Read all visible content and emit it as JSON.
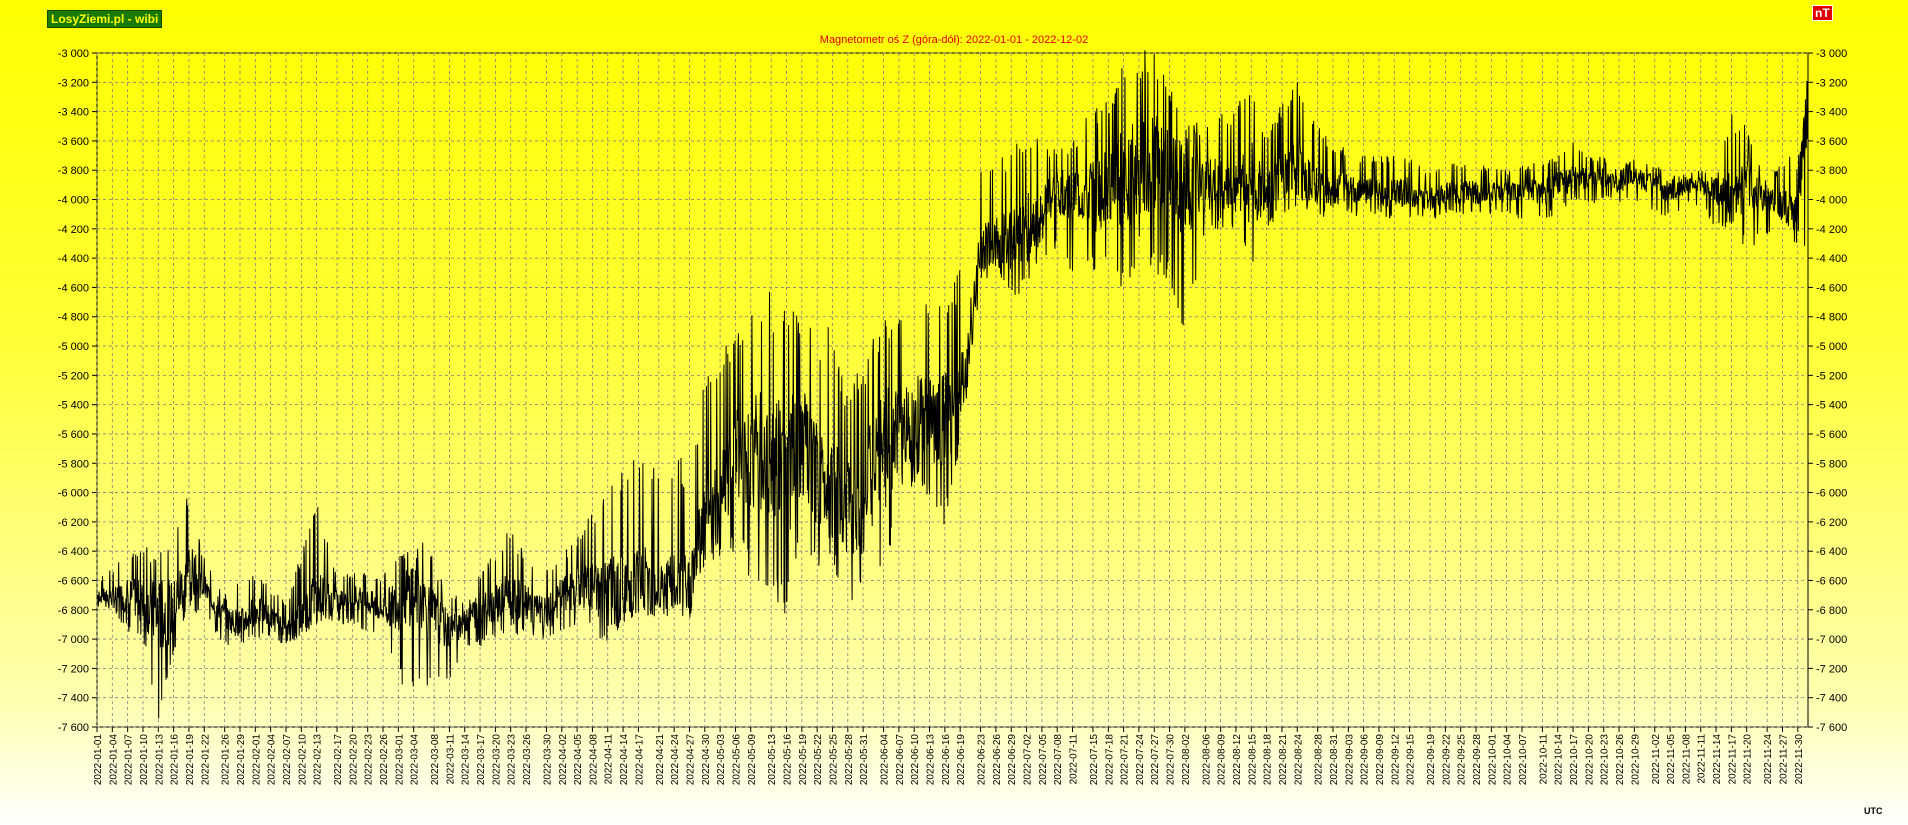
{
  "header": {
    "brand": "LosyZiemi.pl - wibi",
    "unit_badge": "nT",
    "timezone": "UTC"
  },
  "chart_data": {
    "type": "line",
    "title": "Magnetometr oś Z (góra-dół): 2022-01-01 - 2022-12-02",
    "xlabel": "",
    "ylabel": "nT",
    "ylim": [
      -7600,
      -3000
    ],
    "y_ticks": [
      -3000,
      -3200,
      -3400,
      -3600,
      -3800,
      -4000,
      -4200,
      -4400,
      -4600,
      -4800,
      -5000,
      -5200,
      -5400,
      -5600,
      -5800,
      -6000,
      -6200,
      -6400,
      -6600,
      -6800,
      -7000,
      -7200,
      -7400,
      -7600
    ],
    "y_tick_labels": [
      "-3 000",
      "-3 200",
      "-3 400",
      "-3 600",
      "-3 800",
      "-4 000",
      "-4 200",
      "-4 400",
      "-4 600",
      "-4 800",
      "-5 000",
      "-5 200",
      "-5 400",
      "-5 600",
      "-5 800",
      "-6 000",
      "-6 200",
      "-6 400",
      "-6 600",
      "-6 800",
      "-7 000",
      "-7 200",
      "-7 400",
      "-7 600"
    ],
    "x_range": [
      "2022-01-01",
      "2022-12-02"
    ],
    "x_tick_labels": [
      "2022-01-01",
      "2022-01-04",
      "2022-01-07",
      "2022-01-10",
      "2022-01-13",
      "2022-01-16",
      "2022-01-19",
      "2022-01-22",
      "2022-01-26",
      "2022-01-29",
      "2022-02-01",
      "2022-02-04",
      "2022-02-07",
      "2022-02-10",
      "2022-02-13",
      "2022-02-17",
      "2022-02-20",
      "2022-02-23",
      "2022-02-26",
      "2022-03-01",
      "2022-03-04",
      "2022-03-08",
      "2022-03-11",
      "2022-03-14",
      "2022-03-17",
      "2022-03-20",
      "2022-03-23",
      "2022-03-26",
      "2022-03-30",
      "2022-04-02",
      "2022-04-05",
      "2022-04-08",
      "2022-04-11",
      "2022-04-14",
      "2022-04-17",
      "2022-04-21",
      "2022-04-24",
      "2022-04-27",
      "2022-04-30",
      "2022-05-03",
      "2022-05-06",
      "2022-05-09",
      "2022-05-13",
      "2022-05-16",
      "2022-05-19",
      "2022-05-22",
      "2022-05-25",
      "2022-05-28",
      "2022-05-31",
      "2022-06-04",
      "2022-06-07",
      "2022-06-10",
      "2022-06-13",
      "2022-06-16",
      "2022-06-19",
      "2022-06-23",
      "2022-06-26",
      "2022-06-29",
      "2022-07-02",
      "2022-07-05",
      "2022-07-08",
      "2022-07-11",
      "2022-07-15",
      "2022-07-18",
      "2022-07-21",
      "2022-07-24",
      "2022-07-27",
      "2022-07-30",
      "2022-08-02",
      "2022-08-06",
      "2022-08-09",
      "2022-08-12",
      "2022-08-15",
      "2022-08-18",
      "2022-08-21",
      "2022-08-24",
      "2022-08-28",
      "2022-08-31",
      "2022-09-03",
      "2022-09-06",
      "2022-09-09",
      "2022-09-12",
      "2022-09-15",
      "2022-09-19",
      "2022-09-22",
      "2022-09-25",
      "2022-09-28",
      "2022-10-01",
      "2022-10-04",
      "2022-10-07",
      "2022-10-11",
      "2022-10-14",
      "2022-10-17",
      "2022-10-20",
      "2022-10-23",
      "2022-10-26",
      "2022-10-29",
      "2022-11-02",
      "2022-11-05",
      "2022-11-08",
      "2022-11-11",
      "2022-11-14",
      "2022-11-17",
      "2022-11-20",
      "2022-11-24",
      "2022-11-27",
      "2022-11-30"
    ],
    "series": [
      {
        "color": "#000000",
        "x": [
          "2022-01-01",
          "2022-01-04",
          "2022-01-07",
          "2022-01-10",
          "2022-01-13",
          "2022-01-16",
          "2022-01-19",
          "2022-01-22",
          "2022-01-26",
          "2022-01-29",
          "2022-02-01",
          "2022-02-04",
          "2022-02-07",
          "2022-02-10",
          "2022-02-13",
          "2022-02-17",
          "2022-02-20",
          "2022-02-23",
          "2022-02-26",
          "2022-03-01",
          "2022-03-04",
          "2022-03-08",
          "2022-03-11",
          "2022-03-14",
          "2022-03-17",
          "2022-03-20",
          "2022-03-23",
          "2022-03-26",
          "2022-03-30",
          "2022-04-02",
          "2022-04-05",
          "2022-04-08",
          "2022-04-11",
          "2022-04-14",
          "2022-04-17",
          "2022-04-21",
          "2022-04-24",
          "2022-04-27",
          "2022-04-30",
          "2022-05-03",
          "2022-05-06",
          "2022-05-09",
          "2022-05-13",
          "2022-05-16",
          "2022-05-19",
          "2022-05-22",
          "2022-05-25",
          "2022-05-28",
          "2022-05-31",
          "2022-06-04",
          "2022-06-07",
          "2022-06-10",
          "2022-06-13",
          "2022-06-16",
          "2022-06-19",
          "2022-06-23",
          "2022-06-26",
          "2022-06-29",
          "2022-07-02",
          "2022-07-05",
          "2022-07-08",
          "2022-07-11",
          "2022-07-15",
          "2022-07-18",
          "2022-07-21",
          "2022-07-24",
          "2022-07-27",
          "2022-07-30",
          "2022-08-02",
          "2022-08-06",
          "2022-08-09",
          "2022-08-12",
          "2022-08-15",
          "2022-08-18",
          "2022-08-21",
          "2022-08-24",
          "2022-08-28",
          "2022-08-31",
          "2022-09-03",
          "2022-09-06",
          "2022-09-09",
          "2022-09-12",
          "2022-09-15",
          "2022-09-19",
          "2022-09-22",
          "2022-09-25",
          "2022-09-28",
          "2022-10-01",
          "2022-10-04",
          "2022-10-07",
          "2022-10-11",
          "2022-10-14",
          "2022-10-17",
          "2022-10-20",
          "2022-10-23",
          "2022-10-26",
          "2022-10-29",
          "2022-11-02",
          "2022-11-05",
          "2022-11-08",
          "2022-11-11",
          "2022-11-14",
          "2022-11-17",
          "2022-11-20",
          "2022-11-24",
          "2022-11-27",
          "2022-11-30",
          "2022-12-02"
        ],
        "mean": [
          -6700,
          -6720,
          -6700,
          -6750,
          -6850,
          -6800,
          -6500,
          -6650,
          -6850,
          -6900,
          -6800,
          -6850,
          -6950,
          -6850,
          -6700,
          -6750,
          -6700,
          -6750,
          -6800,
          -6750,
          -6650,
          -6850,
          -6950,
          -6850,
          -6800,
          -6750,
          -6700,
          -6750,
          -6850,
          -6700,
          -6650,
          -6650,
          -6700,
          -6650,
          -6600,
          -6650,
          -6650,
          -6650,
          -6150,
          -5950,
          -5750,
          -5700,
          -5800,
          -5850,
          -5650,
          -5900,
          -5950,
          -6100,
          -6050,
          -5700,
          -5600,
          -5500,
          -5500,
          -5500,
          -5400,
          -4350,
          -4300,
          -4250,
          -4200,
          -4100,
          -3950,
          -4000,
          -4000,
          -3900,
          -3850,
          -3800,
          -3750,
          -3850,
          -3950,
          -3900,
          -3900,
          -3900,
          -3900,
          -3950,
          -3850,
          -3800,
          -3900,
          -3950,
          -3900,
          -3950,
          -3950,
          -3950,
          -3950,
          -4000,
          -3950,
          -3950,
          -3950,
          -3950,
          -3950,
          -3950,
          -3950,
          -3900,
          -3850,
          -3850,
          -3850,
          -3900,
          -3850,
          -3900,
          -3950,
          -3900,
          -3900,
          -3950,
          -3950,
          -3900,
          -4000,
          -4050,
          -4100,
          -3300
        ],
        "high": [
          -6600,
          -6500,
          -6400,
          -6350,
          -6400,
          -6200,
          -5980,
          -6450,
          -6700,
          -6600,
          -6550,
          -6650,
          -6750,
          -6400,
          -6050,
          -6550,
          -6550,
          -6550,
          -6550,
          -6450,
          -6250,
          -6450,
          -6750,
          -6550,
          -6550,
          -6400,
          -6200,
          -6450,
          -6500,
          -6400,
          -6300,
          -6100,
          -5950,
          -5800,
          -5700,
          -5850,
          -5750,
          -5750,
          -5200,
          -5050,
          -4900,
          -4600,
          -4600,
          -4700,
          -4700,
          -4900,
          -4800,
          -5300,
          -5100,
          -4700,
          -4800,
          -4600,
          -4650,
          -4700,
          -4450,
          -3800,
          -3750,
          -3650,
          -3500,
          -3600,
          -3650,
          -3600,
          -3350,
          -3300,
          -3050,
          -2980,
          -2980,
          -3150,
          -3500,
          -3450,
          -3400,
          -3350,
          -3200,
          -3550,
          -3300,
          -3200,
          -3500,
          -3600,
          -3650,
          -3700,
          -3700,
          -3700,
          -3700,
          -3800,
          -3750,
          -3750,
          -3750,
          -3750,
          -3800,
          -3750,
          -3750,
          -3700,
          -3600,
          -3700,
          -3700,
          -3800,
          -3700,
          -3750,
          -3850,
          -3800,
          -3800,
          -3850,
          -3400,
          -3500,
          -3900,
          -3700,
          -3700,
          -3300
        ],
        "low": [
          -6800,
          -6800,
          -6950,
          -7000,
          -7580,
          -7100,
          -6800,
          -6850,
          -7050,
          -7050,
          -7000,
          -7000,
          -7050,
          -7000,
          -6900,
          -6900,
          -6900,
          -6950,
          -7000,
          -7300,
          -7380,
          -7300,
          -7300,
          -7050,
          -7050,
          -7000,
          -6950,
          -7000,
          -7050,
          -6950,
          -6900,
          -6900,
          -7100,
          -6850,
          -6850,
          -6800,
          -6800,
          -6800,
          -6500,
          -6450,
          -6400,
          -6600,
          -6700,
          -6850,
          -6400,
          -6500,
          -6500,
          -6750,
          -6750,
          -6700,
          -6050,
          -5950,
          -6050,
          -6300,
          -5700,
          -4600,
          -4500,
          -4700,
          -4600,
          -4500,
          -4350,
          -4500,
          -4500,
          -4400,
          -4700,
          -4400,
          -4500,
          -4600,
          -5020,
          -4250,
          -4200,
          -4200,
          -4550,
          -4200,
          -4100,
          -4050,
          -4100,
          -4150,
          -4100,
          -4150,
          -4100,
          -4150,
          -4150,
          -4150,
          -4100,
          -4100,
          -4100,
          -4100,
          -4100,
          -4150,
          -4150,
          -4100,
          -4000,
          -4050,
          -4000,
          -4050,
          -4000,
          -4100,
          -4150,
          -4050,
          -4050,
          -4200,
          -4200,
          -4350,
          -4250,
          -4200,
          -4350,
          -4400
        ]
      }
    ],
    "grid": true,
    "legend": "none",
    "colors": {
      "title": "#e00000",
      "line": "#000000",
      "grid": "#808080",
      "brand_bg": "#1a7a00",
      "brand_text": "#ffff00",
      "badge_bg": "#e00000"
    }
  }
}
